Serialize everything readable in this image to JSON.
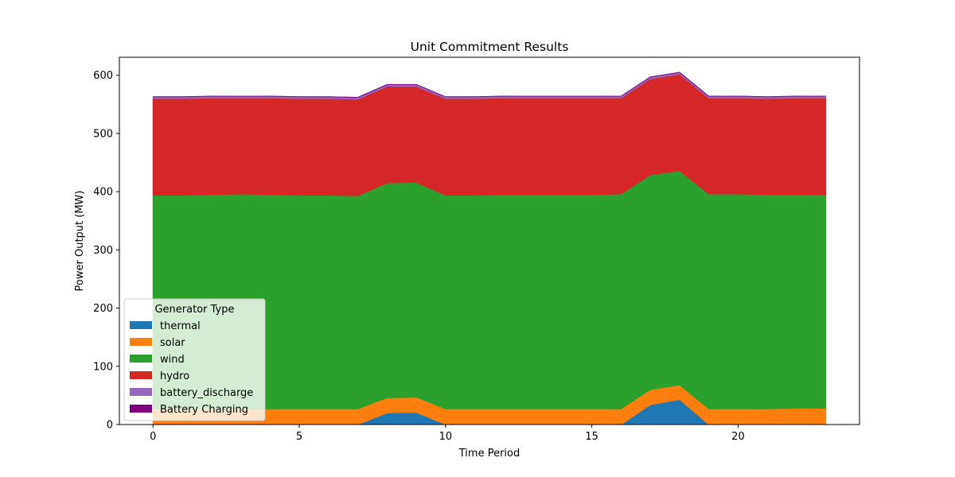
{
  "chart_data": {
    "type": "area",
    "stacked": true,
    "title": "Unit Commitment Results",
    "xlabel": "Time Period",
    "ylabel": "Power Output (MW)",
    "xlim": [
      -1.15,
      24.15
    ],
    "ylim": [
      0,
      631
    ],
    "xticks": [
      0,
      5,
      10,
      15,
      20
    ],
    "yticks": [
      0,
      100,
      200,
      300,
      400,
      500,
      600
    ],
    "x": [
      0,
      1,
      2,
      3,
      4,
      5,
      6,
      7,
      8,
      9,
      10,
      11,
      12,
      13,
      14,
      15,
      16,
      17,
      18,
      19,
      20,
      21,
      22,
      23
    ],
    "series": [
      {
        "name": "thermal",
        "color": "#1f77b4",
        "values": [
          0,
          0,
          0,
          0,
          0,
          0,
          0,
          0,
          20,
          21,
          0,
          0,
          0,
          0,
          0,
          0,
          0,
          34,
          43,
          0,
          0,
          0,
          0,
          0
        ]
      },
      {
        "name": "solar",
        "color": "#ff7f0e",
        "values": [
          27,
          27,
          27,
          27,
          27,
          27,
          27,
          27,
          26,
          26,
          27,
          27,
          27,
          27,
          27,
          27,
          27,
          26,
          25,
          27,
          27,
          27,
          28,
          28
        ]
      },
      {
        "name": "wind",
        "color": "#2ca02c",
        "values": [
          367,
          367,
          368,
          369,
          368,
          367,
          367,
          366,
          369,
          369,
          367,
          367,
          368,
          368,
          368,
          368,
          369,
          369,
          368,
          369,
          369,
          368,
          367,
          367
        ]
      },
      {
        "name": "hydro",
        "color": "#d62728",
        "values": [
          166,
          166,
          166,
          165,
          166,
          166,
          166,
          166,
          166,
          165,
          166,
          166,
          166,
          166,
          166,
          166,
          165,
          165,
          166,
          165,
          165,
          165,
          166,
          166
        ]
      },
      {
        "name": "battery_discharge",
        "color": "#9467bd",
        "values": [
          3,
          3,
          3,
          3,
          3,
          3,
          3,
          3,
          3,
          3,
          3,
          3,
          3,
          3,
          3,
          3,
          3,
          3,
          3,
          3,
          3,
          3,
          3,
          3
        ]
      },
      {
        "name": "Battery Charging",
        "color": "#800080",
        "values": [
          0,
          0,
          0,
          0,
          0,
          0,
          0,
          0,
          0,
          0,
          0,
          0,
          0,
          0,
          0,
          0,
          0,
          0,
          0,
          0,
          0,
          0,
          0,
          0
        ]
      }
    ],
    "legend": {
      "title": "Generator Type",
      "position": "lower-left"
    },
    "grid": false
  }
}
